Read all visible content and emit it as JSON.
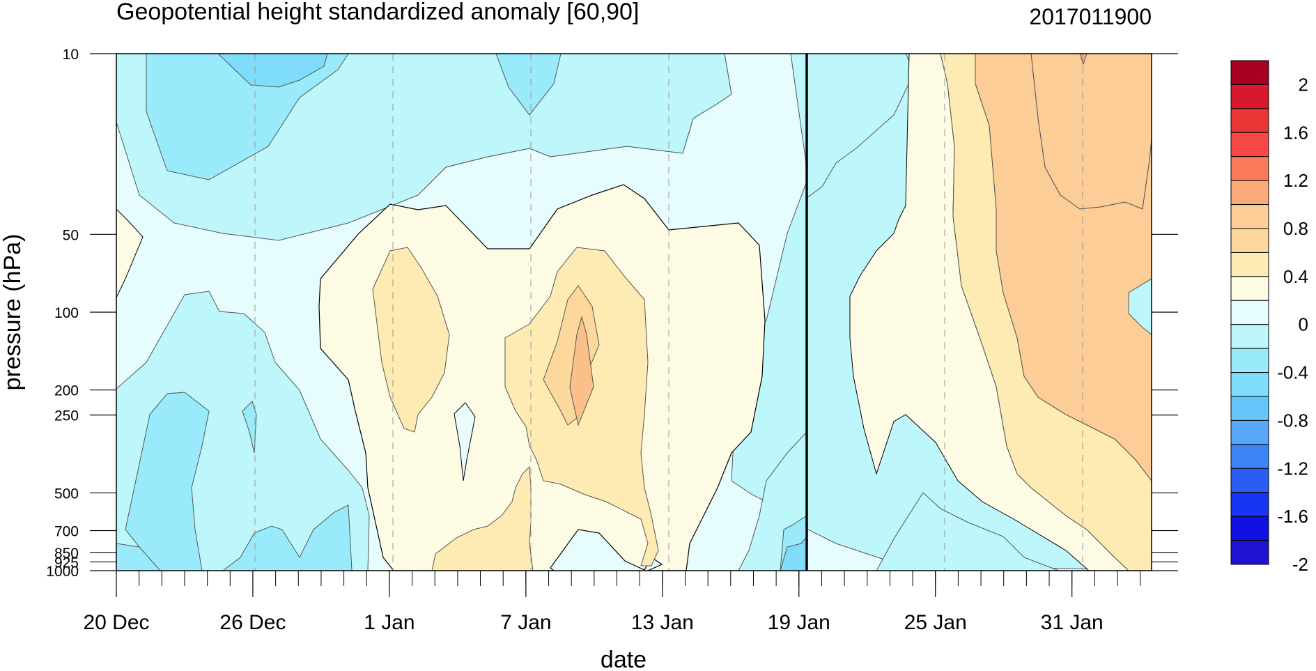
{
  "chart_data": {
    "type": "heatmap",
    "title": "Geopotential height standardized anomaly [60,90]",
    "right_title": "2017011900",
    "xlabel": "date",
    "ylabel": "pressure (hPa)",
    "x_ticks": [
      "20 Dec",
      "26 Dec",
      "1 Jan",
      "7 Jan",
      "13 Jan",
      "19 Jan",
      "25 Jan",
      "31 Jan"
    ],
    "x_start": "2016-12-20",
    "x_end": "2017-02-03",
    "reference_date": "2017-01-19",
    "y_ticks": [
      "10",
      "50",
      "100",
      "200",
      "250",
      "500",
      "700",
      "850",
      "925",
      "1000"
    ],
    "y_log_scale": true,
    "colorbar": {
      "labels": [
        "2",
        "1.6",
        "1.2",
        "0.8",
        "0.4",
        "0",
        "-0.4",
        "-0.8",
        "-1.2",
        "-1.6",
        "-2"
      ],
      "levels": [
        -2,
        -1.8,
        -1.6,
        -1.4,
        -1.2,
        -1.0,
        -0.8,
        -0.6,
        -0.4,
        -0.2,
        0,
        0.2,
        0.4,
        0.6,
        0.8,
        1.0,
        1.2,
        1.4,
        1.6,
        1.8,
        2.0
      ],
      "colors_top_to_bottom": [
        "#a50021",
        "#d7192b",
        "#e83535",
        "#f74848",
        "#f97b5a",
        "#fbaa79",
        "#fccd97",
        "#fdd89c",
        "#fdebb3",
        "#fefbe4",
        "#e7fdfd",
        "#bdf6fb",
        "#99ebfc",
        "#7fdcfa",
        "#65c6fb",
        "#59a7fa",
        "#3b84f6",
        "#295cf3",
        "#1535f0",
        "#1010e0",
        "#1e13d0"
      ]
    },
    "field_levels_drawn": {
      "neg_0_6": "#99ebfc",
      "neg_0_4": "#bdf6fb",
      "neg_0_2": "#e7fdfd",
      "zero_0_2": "#fefbe4",
      "pos_0_2": "#fdebb3",
      "pos_0_4": "#fdd89c",
      "pos_0_6": "#fccd97",
      "neg_0_8": "#7fdcfa"
    }
  }
}
